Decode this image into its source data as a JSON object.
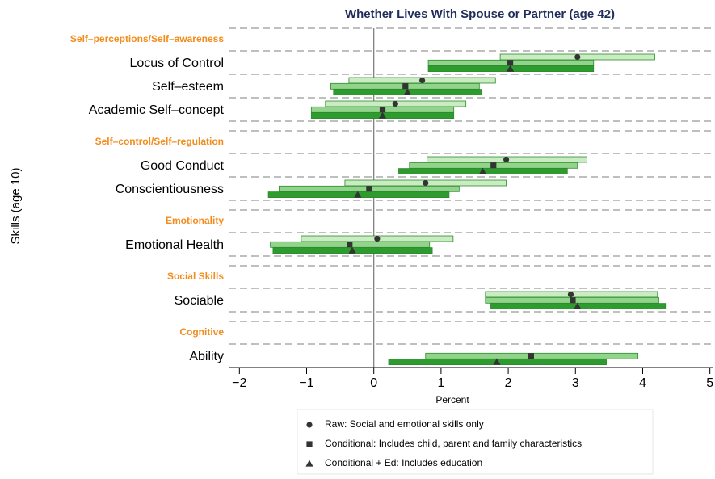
{
  "chart_data": {
    "type": "coefplot",
    "title": "Whether Lives With Spouse or Partner (age 42)",
    "xlabel": "Percent",
    "ylabel": "Skills (age 10)",
    "xlim": [
      -2.16,
      5.04
    ],
    "xticks": [
      {
        "value": -2,
        "label": "−2"
      },
      {
        "value": -1,
        "label": "−1"
      },
      0,
      1,
      2,
      3,
      4,
      5
    ],
    "groups": [
      {
        "label": "Self–perceptions/Self–awareness",
        "categories": [
          "Locus of Control",
          "Self–esteem",
          "Academic Self–concept"
        ]
      },
      {
        "label": "Self–control/Self–regulation",
        "categories": [
          "Good Conduct",
          "Conscientiousness"
        ]
      },
      {
        "label": "Emotionality",
        "categories": [
          "Emotional Health"
        ]
      },
      {
        "label": "Social Skills",
        "categories": [
          "Sociable"
        ]
      },
      {
        "label": "Cognitive",
        "categories": [
          "Ability"
        ]
      }
    ],
    "series": [
      {
        "name": "Raw: Social and emotional skills only",
        "marker": "circle",
        "color": "#c9ecc2",
        "values": [
          3.03,
          0.72,
          0.32,
          1.97,
          0.77,
          0.05,
          2.93,
          null
        ],
        "lower": [
          1.88,
          -0.37,
          -0.72,
          0.79,
          -0.43,
          -1.08,
          1.66,
          null
        ],
        "upper": [
          4.18,
          1.81,
          1.37,
          3.17,
          1.97,
          1.18,
          4.22,
          null
        ]
      },
      {
        "name": "Conditional: Includes child, parent and family characteristics",
        "marker": "square",
        "color": "#92d48c",
        "values": [
          2.03,
          0.47,
          0.13,
          1.78,
          -0.07,
          -0.36,
          2.96,
          2.34
        ],
        "lower": [
          0.81,
          -0.64,
          -0.93,
          0.53,
          -1.41,
          -1.54,
          1.66,
          0.77
        ],
        "upper": [
          3.27,
          1.57,
          1.19,
          3.03,
          1.27,
          0.83,
          4.24,
          3.93
        ]
      },
      {
        "name": "Conditional + Ed: Includes education",
        "marker": "triangle",
        "color": "#2e9b2e",
        "values": [
          2.03,
          0.5,
          0.13,
          1.62,
          -0.24,
          -0.32,
          3.03,
          1.83
        ],
        "lower": [
          0.81,
          -0.6,
          -0.93,
          0.37,
          -1.57,
          -1.5,
          1.74,
          0.22
        ],
        "upper": [
          3.27,
          1.61,
          1.19,
          2.88,
          1.12,
          0.87,
          4.34,
          3.46
        ]
      }
    ]
  }
}
